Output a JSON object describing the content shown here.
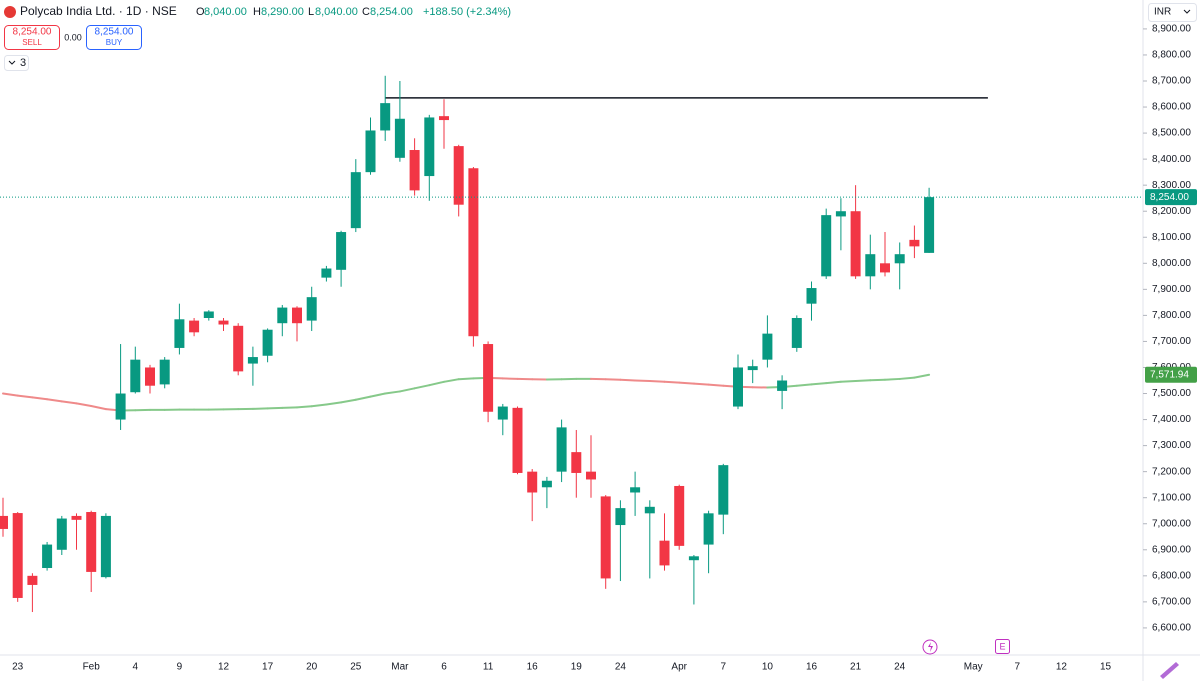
{
  "header": {
    "symbol": "Polycab India Ltd. · 1D · NSE",
    "o": "O",
    "open": "8,040.00",
    "h": "H",
    "high": "8,290.00",
    "l": "L",
    "low": "8,040.00",
    "c": "C",
    "close": "8,254.00",
    "change": "+188.50 (+2.34%)",
    "sell_price": "8,254.00",
    "sell": "SELL",
    "spread": "0.00",
    "buy_price": "8,254.00",
    "buy": "BUY",
    "indicators": "3",
    "currency": "INR",
    "event": "E"
  },
  "chart_data": {
    "type": "candlestick",
    "categories": [
      null,
      "23",
      null,
      null,
      null,
      null,
      "Feb",
      null,
      null,
      "4",
      null,
      null,
      "9",
      null,
      null,
      "12",
      null,
      null,
      "17",
      null,
      null,
      "20",
      null,
      null,
      "25",
      null,
      null,
      "Mar",
      null,
      null,
      "6",
      null,
      null,
      "11",
      null,
      null,
      "16",
      null,
      null,
      "19",
      null,
      null,
      "24",
      null,
      null,
      null,
      "Apr",
      null,
      null,
      "7",
      null,
      null,
      "10",
      null,
      null,
      "16",
      null,
      null,
      "21",
      null,
      null,
      "24",
      null,
      null,
      null,
      null,
      "May",
      null,
      null,
      "7",
      null,
      null,
      "12",
      null,
      null,
      "15"
    ],
    "open": [
      7030,
      7041,
      6800,
      6830,
      6900,
      7030,
      7045,
      6795,
      7400,
      7505,
      7600,
      7535,
      7675,
      7780,
      7790,
      7780,
      7760,
      7615,
      7645,
      7770,
      7830,
      7780,
      7945,
      7975,
      8135,
      8350,
      8510,
      8405,
      8435,
      8335,
      8565,
      8450,
      8365,
      7690,
      7400,
      7445,
      7200,
      7140,
      7200,
      7275,
      7200,
      7105,
      6995,
      7120,
      7040,
      6935,
      7145,
      6860,
      6920,
      7035,
      7450,
      7590,
      7630,
      7510,
      7675,
      7845,
      7950,
      8180,
      8200,
      7950,
      8000,
      8000,
      8090,
      8040,
      null,
      null,
      null,
      null,
      null,
      null,
      null,
      null,
      null,
      null,
      null,
      null
    ],
    "high": [
      7100,
      7045,
      6810,
      6930,
      7030,
      7040,
      7050,
      7040,
      7690,
      7680,
      7610,
      7640,
      7845,
      7790,
      7820,
      7790,
      7770,
      7680,
      7750,
      7840,
      7835,
      7910,
      7990,
      8125,
      8400,
      8560,
      8720,
      8700,
      8480,
      8570,
      8630,
      8455,
      8370,
      7700,
      7460,
      7450,
      7210,
      7180,
      7400,
      7360,
      7340,
      7110,
      7090,
      7200,
      7090,
      7040,
      7150,
      6880,
      7050,
      7230,
      7650,
      7630,
      7800,
      7570,
      7800,
      7930,
      8210,
      8250,
      8300,
      8110,
      8120,
      8080,
      8145,
      8290,
      null,
      null,
      null,
      null,
      null,
      null,
      null,
      null,
      null,
      null,
      null,
      null
    ],
    "low": [
      6950,
      6700,
      6661,
      6820,
      6880,
      6900,
      6738,
      6790,
      7360,
      7500,
      7500,
      7520,
      7650,
      7720,
      7780,
      7740,
      7570,
      7530,
      7620,
      7720,
      7700,
      7740,
      7930,
      7910,
      8120,
      8340,
      8470,
      8390,
      8260,
      8240,
      8440,
      8180,
      7680,
      7390,
      7340,
      7190,
      7010,
      7060,
      7160,
      7100,
      7100,
      6750,
      6780,
      7030,
      6790,
      6820,
      6900,
      6690,
      6810,
      6960,
      7440,
      7540,
      7600,
      7440,
      7660,
      7780,
      7940,
      8050,
      7940,
      7900,
      7950,
      7900,
      8020,
      8040,
      null,
      null,
      null,
      null,
      null,
      null,
      null,
      null,
      null,
      null,
      null,
      null
    ],
    "close": [
      6980,
      6715,
      6765,
      6920,
      7020,
      7015,
      6815,
      7030,
      7500,
      7630,
      7530,
      7630,
      7785,
      7735,
      7815,
      7765,
      7585,
      7640,
      7745,
      7830,
      7770,
      7870,
      7980,
      8120,
      8350,
      8510,
      8615,
      8555,
      8280,
      8560,
      8550,
      8225,
      7720,
      7430,
      7450,
      7195,
      7120,
      7165,
      7370,
      7195,
      7170,
      6790,
      7060,
      7140,
      7065,
      6840,
      6915,
      6875,
      7040,
      7225,
      7600,
      7605,
      7730,
      7550,
      7790,
      7905,
      8185,
      8200,
      7950,
      8035,
      7965,
      8035,
      8065,
      8254,
      null,
      null,
      null,
      null,
      null,
      null,
      null,
      null,
      null,
      null,
      null,
      null
    ],
    "up_color": "#089981",
    "down_color": "#f23645",
    "last_close_label": "8,254.00",
    "ma": {
      "values": [
        7500,
        7492,
        7485,
        7478,
        7470,
        7462,
        7452,
        7440,
        7435,
        7436,
        7437,
        7437,
        7438,
        7438,
        7438,
        7439,
        7440,
        7441,
        7443,
        7445,
        7447,
        7451,
        7458,
        7466,
        7476,
        7488,
        7500,
        7508,
        7520,
        7532,
        7545,
        7555,
        7558,
        7560,
        7558,
        7556,
        7555,
        7554,
        7555,
        7556,
        7556,
        7555,
        7553,
        7550,
        7548,
        7545,
        7542,
        7538,
        7534,
        7530,
        7526,
        7524,
        7523,
        7525,
        7530,
        7535,
        7540,
        7545,
        7548,
        7551,
        7553,
        7556,
        7561,
        7571.94,
        null,
        null,
        null,
        null,
        null,
        null,
        null,
        null,
        null,
        null,
        null,
        null
      ],
      "last_label": "7,571.94",
      "rising_color": "#86c98a",
      "falling_color": "#ef8a8a"
    },
    "level_line": {
      "value": 8635,
      "color": "#131722"
    },
    "ylim": [
      6496,
      9011
    ],
    "yticks": [
      {
        "value": 6600,
        "label": "6,600.00"
      },
      {
        "value": 6700,
        "label": "6,700.00"
      },
      {
        "value": 6800,
        "label": "6,800.00"
      },
      {
        "value": 6900,
        "label": "6,900.00"
      },
      {
        "value": 7000,
        "label": "7,000.00"
      },
      {
        "value": 7100,
        "label": "7,100.00"
      },
      {
        "value": 7200,
        "label": "7,200.00"
      },
      {
        "value": 7300,
        "label": "7,300.00"
      },
      {
        "value": 7400,
        "label": "7,400.00"
      },
      {
        "value": 7500,
        "label": "7,500.00"
      },
      {
        "value": 7600,
        "label": "7,600.00"
      },
      {
        "value": 7700,
        "label": "7,700.00"
      },
      {
        "value": 7800,
        "label": "7,800.00"
      },
      {
        "value": 7900,
        "label": "7,900.00"
      },
      {
        "value": 8000,
        "label": "8,000.00"
      },
      {
        "value": 8100,
        "label": "8,100.00"
      },
      {
        "value": 8200,
        "label": "8,200.00"
      },
      {
        "value": 8300,
        "label": "8,300.00"
      },
      {
        "value": 8400,
        "label": "8,400.00"
      },
      {
        "value": 8500,
        "label": "8,500.00"
      },
      {
        "value": 8600,
        "label": "8,600.00"
      },
      {
        "value": 8700,
        "label": "8,700.00"
      },
      {
        "value": 8800,
        "label": "8,800.00"
      },
      {
        "value": 8900,
        "label": "8,900.00"
      }
    ],
    "grid": false
  }
}
